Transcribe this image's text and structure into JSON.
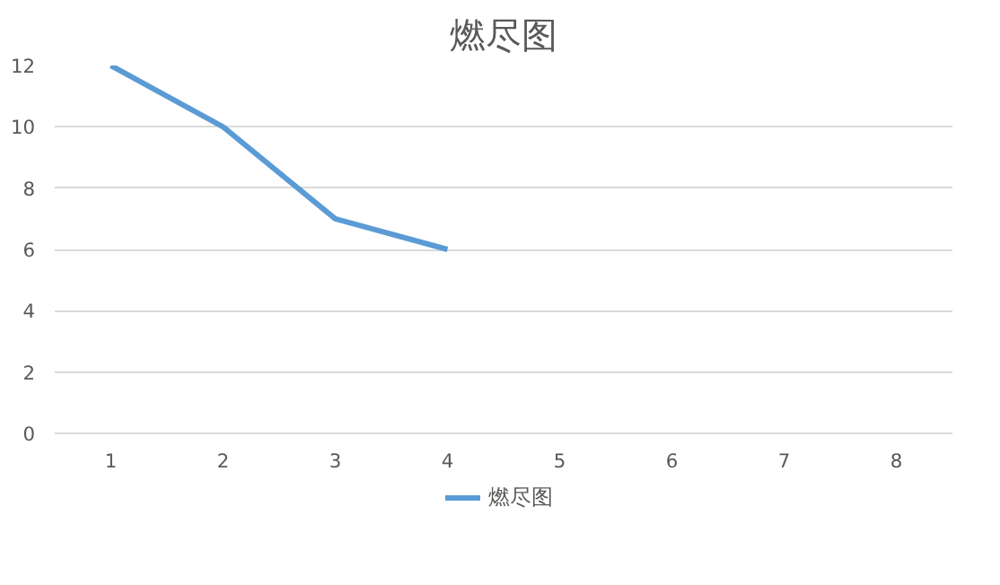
{
  "chart_data": {
    "type": "line",
    "title": "燃尽图",
    "categories": [
      "1",
      "2",
      "3",
      "4",
      "5",
      "6",
      "7",
      "8"
    ],
    "series": [
      {
        "name": "燃尽图",
        "color": "#5b9bd5",
        "values": [
          12,
          10,
          7,
          6,
          null,
          null,
          null,
          null
        ]
      }
    ],
    "ylim": [
      0,
      12
    ],
    "yticks": [
      0,
      2,
      4,
      6,
      8,
      10,
      12
    ],
    "grid": "y",
    "legend": "bottom",
    "marker": "none",
    "line_style": "solid"
  }
}
